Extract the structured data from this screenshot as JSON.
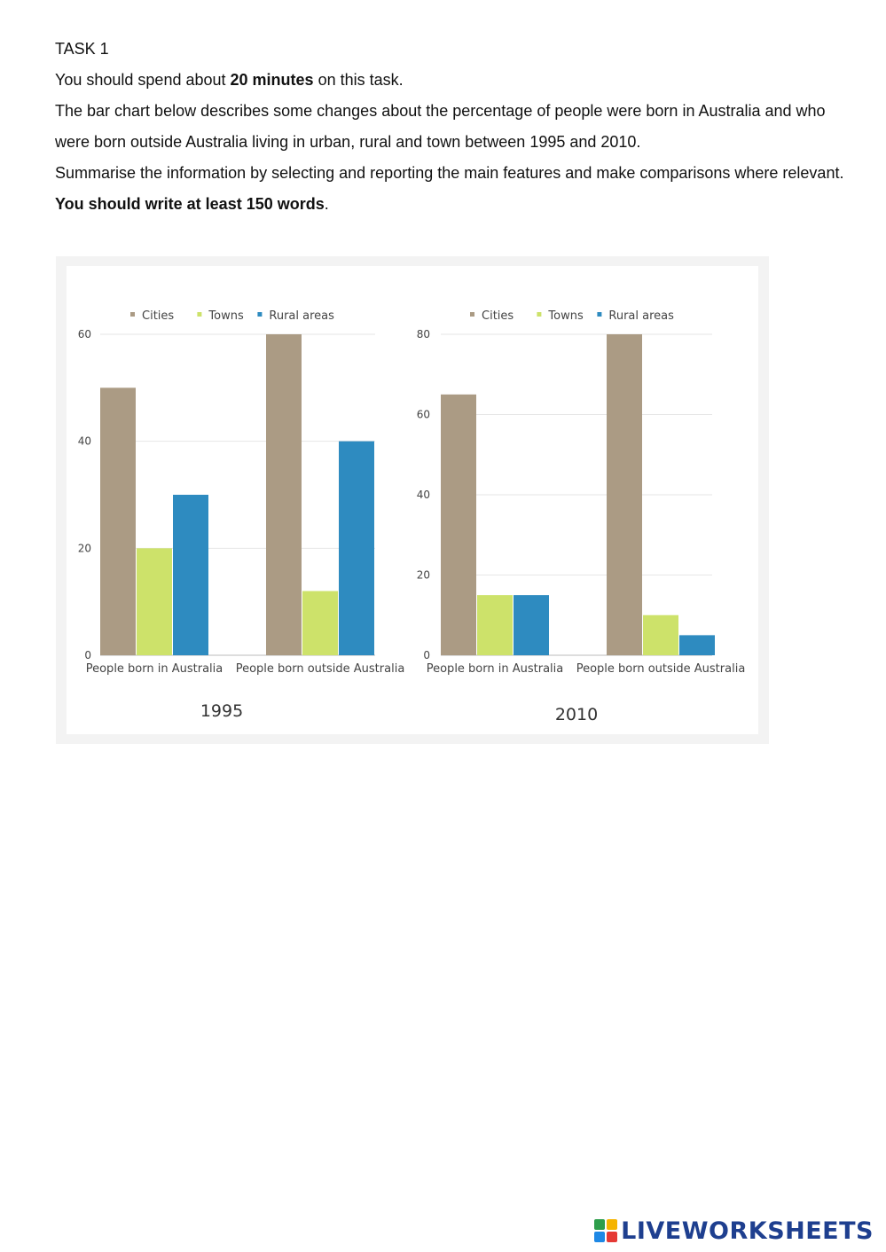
{
  "task": {
    "heading": "TASK 1",
    "line1_pre": "You should spend about ",
    "line1_bold": "20 minutes",
    "line1_post": " on this task.",
    "paragraph1": "The bar chart below describes some changes about the percentage of people were born in Australia and who were born outside Australia living in urban, rural and town between 1995 and 2010.",
    "paragraph2": "Summarise the information by selecting and reporting the main features and make comparisons where relevant.",
    "instruction_bold": "You should write at least 150 words",
    "instruction_post": "."
  },
  "colors": {
    "Cities": "#ab9b84",
    "Towns": "#cde26a",
    "Rural areas": "#2e8bc0",
    "grid": "#e6e6e6",
    "axis_text": "#444444"
  },
  "chart_data": [
    {
      "type": "bar",
      "title": "1995",
      "categories": [
        "People born in Australia",
        "People born outside Australia"
      ],
      "series": [
        {
          "name": "Cities",
          "values": [
            50,
            60
          ]
        },
        {
          "name": "Towns",
          "values": [
            20,
            12
          ]
        },
        {
          "name": "Rural areas",
          "values": [
            30,
            40
          ]
        }
      ],
      "ylim": [
        0,
        60
      ],
      "yticks": [
        0,
        20,
        40,
        60
      ],
      "grid": true,
      "legend": "top"
    },
    {
      "type": "bar",
      "title": "2010",
      "categories": [
        "People born in Australia",
        "People born outside Australia"
      ],
      "series": [
        {
          "name": "Cities",
          "values": [
            65,
            80
          ]
        },
        {
          "name": "Towns",
          "values": [
            15,
            10
          ]
        },
        {
          "name": "Rural areas",
          "values": [
            15,
            5
          ]
        }
      ],
      "ylim": [
        0,
        80
      ],
      "yticks": [
        0,
        20,
        40,
        60,
        80
      ],
      "grid": true,
      "legend": "top"
    }
  ],
  "logo": {
    "text": "LIVEWORKSHEETS",
    "colors": [
      "#2e9e4b",
      "#f5b400",
      "#1e88e5",
      "#e53935"
    ]
  }
}
